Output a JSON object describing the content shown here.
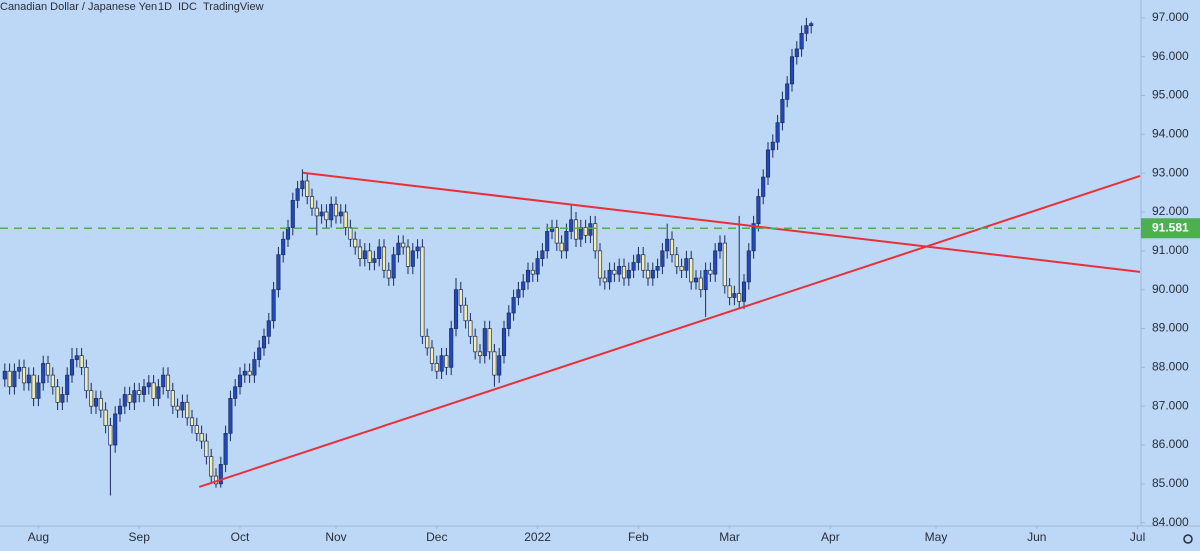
{
  "chart_data": {
    "type": "candlestick",
    "title": "Canadian Dollar / Japanese Yen",
    "interval": "1D",
    "source": "IDC",
    "platform": "TradingView",
    "up_color": "#2149b9",
    "down_color": "#f4efb0",
    "background": "#bcd8f6",
    "xlim": [
      -1,
      236.5
    ],
    "ylim": [
      83.94,
      97.46
    ],
    "xticks": [
      {
        "value": 7,
        "label": "Aug"
      },
      {
        "value": 28,
        "label": "Sep"
      },
      {
        "value": 49,
        "label": "Oct"
      },
      {
        "value": 69,
        "label": "Nov"
      },
      {
        "value": 90,
        "label": "Dec"
      },
      {
        "value": 111,
        "label": "2022"
      },
      {
        "value": 132,
        "label": "Feb"
      },
      {
        "value": 151,
        "label": "Mar"
      },
      {
        "value": 172,
        "label": "Apr"
      },
      {
        "value": 194,
        "label": "May"
      },
      {
        "value": 215,
        "label": "Jun"
      },
      {
        "value": 236,
        "label": "Jul"
      }
    ],
    "yticks": [
      {
        "value": 84,
        "label": "84.000"
      },
      {
        "value": 85,
        "label": "85.000"
      },
      {
        "value": 86,
        "label": "86.000"
      },
      {
        "value": 87,
        "label": "87.000"
      },
      {
        "value": 88,
        "label": "88.000"
      },
      {
        "value": 89,
        "label": "89.000"
      },
      {
        "value": 90,
        "label": "90.000"
      },
      {
        "value": 91,
        "label": "91.000"
      },
      {
        "value": 92,
        "label": "92.000"
      },
      {
        "value": 93,
        "label": "93.000"
      },
      {
        "value": 94,
        "label": "94.000"
      },
      {
        "value": 95,
        "label": "95.000"
      },
      {
        "value": 96,
        "label": "96.000"
      },
      {
        "value": 97,
        "label": "97.000"
      }
    ],
    "open": [
      87.7,
      87.9,
      87.5,
      87.9,
      88.0,
      87.6,
      87.8,
      87.2,
      87.6,
      88.1,
      87.8,
      87.5,
      87.1,
      87.3,
      87.8,
      88.2,
      88.3,
      88.0,
      87.4,
      87.0,
      87.2,
      86.9,
      86.5,
      86.0,
      86.8,
      87.0,
      87.3,
      87.1,
      87.4,
      87.3,
      87.5,
      87.6,
      87.2,
      87.5,
      87.8,
      87.4,
      87.0,
      86.9,
      87.1,
      86.7,
      86.5,
      86.3,
      86.1,
      85.7,
      85.2,
      85.0,
      85.5,
      86.3,
      87.2,
      87.5,
      87.8,
      87.9,
      87.8,
      88.2,
      88.5,
      88.8,
      89.2,
      90.0,
      90.9,
      91.3,
      91.6,
      92.3,
      92.6,
      92.8,
      92.4,
      92.1,
      91.9,
      92.0,
      91.8,
      92.2,
      91.9,
      92.0,
      91.6,
      91.3,
      91.1,
      90.8,
      91.0,
      90.7,
      90.8,
      91.1,
      90.5,
      90.3,
      90.9,
      91.2,
      91.1,
      90.6,
      91.0,
      91.1,
      88.8,
      88.5,
      88.1,
      87.9,
      88.3,
      88.0,
      89.0,
      90.0,
      89.6,
      89.2,
      88.8,
      88.4,
      88.3,
      89.0,
      88.4,
      87.8,
      88.3,
      89.0,
      89.4,
      89.8,
      90.0,
      90.2,
      90.5,
      90.4,
      90.8,
      91.0,
      91.5,
      91.6,
      91.2,
      91.0,
      91.5,
      91.8,
      91.3,
      91.6,
      91.4,
      91.7,
      91.0,
      90.3,
      90.2,
      90.5,
      90.4,
      90.6,
      90.3,
      90.5,
      90.7,
      90.9,
      90.5,
      90.3,
      90.5,
      90.6,
      91.0,
      91.3,
      90.9,
      90.6,
      90.5,
      90.8,
      90.2,
      90.3,
      90.0,
      90.5,
      90.4,
      91.0,
      91.2,
      90.1,
      89.8,
      89.9,
      89.7,
      90.2,
      91.0,
      91.7,
      92.4,
      92.9,
      93.6,
      93.8,
      94.3,
      94.9,
      95.3,
      96.0,
      96.2,
      96.6,
      96.8
    ],
    "high": [
      88.1,
      88.1,
      88.1,
      88.2,
      88.2,
      88.0,
      88.0,
      87.8,
      88.3,
      88.3,
      88.0,
      87.7,
      87.5,
      88.0,
      88.5,
      88.5,
      88.5,
      88.2,
      87.6,
      87.4,
      87.4,
      87.1,
      86.7,
      87.0,
      87.2,
      87.5,
      87.5,
      87.6,
      87.6,
      87.7,
      87.8,
      87.8,
      87.7,
      88.0,
      88.0,
      87.6,
      87.2,
      87.3,
      87.3,
      86.9,
      86.7,
      86.5,
      86.3,
      85.9,
      85.4,
      85.7,
      86.5,
      87.4,
      87.7,
      88.0,
      88.1,
      88.1,
      88.4,
      88.7,
      89.0,
      89.4,
      90.2,
      91.1,
      91.5,
      91.8,
      92.5,
      92.8,
      93.1,
      93.0,
      92.6,
      92.3,
      92.2,
      92.2,
      92.4,
      92.4,
      92.2,
      92.2,
      91.8,
      91.5,
      91.3,
      91.2,
      91.2,
      91.0,
      91.3,
      91.3,
      90.7,
      91.1,
      91.4,
      91.4,
      91.3,
      91.2,
      91.3,
      91.3,
      89.0,
      88.7,
      88.3,
      88.5,
      88.5,
      89.2,
      90.3,
      90.2,
      89.8,
      89.4,
      89.0,
      88.6,
      89.2,
      89.2,
      88.6,
      88.5,
      89.2,
      89.6,
      90.0,
      90.2,
      90.4,
      90.7,
      90.7,
      91.0,
      91.2,
      91.7,
      91.8,
      91.8,
      91.4,
      91.7,
      92.2,
      92.0,
      91.8,
      91.8,
      91.9,
      91.9,
      91.2,
      90.5,
      90.7,
      90.7,
      90.8,
      90.8,
      90.7,
      90.9,
      91.1,
      91.1,
      90.7,
      90.7,
      90.8,
      91.2,
      91.7,
      91.5,
      91.1,
      90.8,
      91.0,
      91.0,
      90.5,
      90.5,
      90.7,
      90.7,
      91.2,
      91.4,
      91.4,
      90.3,
      90.1,
      91.9,
      90.4,
      91.2,
      91.9,
      92.6,
      93.1,
      93.8,
      94.0,
      94.5,
      95.1,
      95.5,
      96.2,
      96.4,
      96.8,
      97.0,
      96.9
    ],
    "low": [
      87.5,
      87.3,
      87.3,
      87.7,
      87.4,
      87.4,
      87.0,
      87.0,
      87.4,
      87.6,
      87.3,
      86.9,
      86.9,
      87.1,
      87.6,
      88.0,
      87.8,
      87.2,
      86.8,
      86.8,
      86.7,
      86.3,
      84.7,
      85.8,
      86.6,
      86.8,
      86.9,
      86.9,
      87.1,
      87.1,
      87.3,
      87.0,
      87.0,
      87.3,
      87.2,
      86.8,
      86.7,
      86.7,
      86.5,
      86.3,
      86.1,
      85.9,
      85.5,
      85.0,
      84.9,
      84.9,
      85.3,
      86.1,
      87.0,
      87.3,
      87.6,
      87.6,
      87.6,
      88.0,
      88.3,
      88.6,
      89.0,
      89.8,
      90.7,
      91.1,
      91.4,
      92.1,
      92.4,
      92.2,
      91.9,
      91.4,
      91.7,
      91.6,
      91.6,
      91.7,
      91.7,
      91.4,
      91.1,
      90.9,
      90.6,
      90.6,
      90.5,
      90.5,
      90.6,
      90.3,
      90.1,
      90.1,
      90.7,
      90.9,
      90.4,
      90.4,
      90.8,
      88.6,
      88.3,
      87.9,
      87.7,
      87.7,
      87.8,
      87.8,
      88.8,
      89.4,
      89.0,
      88.6,
      88.2,
      88.1,
      88.1,
      88.2,
      87.5,
      87.6,
      88.1,
      88.8,
      89.2,
      89.6,
      89.8,
      90.0,
      90.2,
      90.2,
      90.6,
      90.8,
      91.3,
      91.0,
      90.8,
      90.8,
      91.3,
      91.1,
      91.1,
      91.2,
      91.2,
      90.8,
      90.1,
      90.0,
      90.0,
      90.2,
      90.2,
      90.1,
      90.1,
      90.3,
      90.5,
      90.3,
      90.1,
      90.1,
      90.3,
      90.4,
      90.8,
      90.7,
      90.4,
      90.3,
      90.3,
      90.0,
      90.0,
      89.8,
      89.3,
      90.2,
      90.2,
      90.8,
      89.9,
      89.6,
      89.6,
      89.5,
      89.5,
      90.0,
      90.8,
      91.5,
      92.2,
      92.7,
      93.4,
      93.6,
      94.1,
      94.7,
      95.1,
      95.8,
      96.0,
      96.4,
      96.6
    ],
    "close": [
      87.9,
      87.5,
      87.9,
      88.0,
      87.6,
      87.8,
      87.2,
      87.6,
      88.1,
      87.8,
      87.5,
      87.1,
      87.3,
      87.8,
      88.2,
      88.3,
      88.0,
      87.4,
      87.0,
      87.2,
      86.9,
      86.5,
      86.0,
      86.8,
      87.0,
      87.3,
      87.1,
      87.4,
      87.3,
      87.5,
      87.6,
      87.2,
      87.5,
      87.8,
      87.4,
      87.0,
      86.9,
      87.1,
      86.7,
      86.5,
      86.3,
      86.1,
      85.7,
      85.2,
      85.0,
      85.5,
      86.3,
      87.2,
      87.5,
      87.8,
      87.9,
      87.8,
      88.2,
      88.5,
      88.8,
      89.2,
      90.0,
      90.9,
      91.3,
      91.6,
      92.3,
      92.6,
      92.8,
      92.4,
      92.1,
      91.9,
      92.0,
      91.8,
      92.2,
      91.9,
      92.0,
      91.6,
      91.3,
      91.1,
      90.8,
      91.0,
      90.7,
      90.8,
      91.1,
      90.5,
      90.3,
      90.9,
      91.2,
      91.1,
      90.6,
      91.0,
      91.1,
      88.8,
      88.5,
      88.1,
      87.9,
      88.3,
      88.0,
      89.0,
      90.0,
      89.6,
      89.2,
      88.8,
      88.4,
      88.3,
      89.0,
      88.4,
      87.8,
      88.3,
      89.0,
      89.4,
      89.8,
      90.0,
      90.2,
      90.5,
      90.4,
      90.8,
      91.0,
      91.5,
      91.6,
      91.2,
      91.0,
      91.5,
      91.8,
      91.3,
      91.6,
      91.4,
      91.7,
      91.0,
      90.3,
      90.2,
      90.5,
      90.4,
      90.6,
      90.3,
      90.5,
      90.7,
      90.9,
      90.5,
      90.3,
      90.5,
      90.6,
      91.0,
      91.3,
      90.9,
      90.6,
      90.5,
      90.8,
      90.2,
      90.3,
      90.0,
      90.5,
      90.4,
      91.0,
      91.2,
      90.1,
      89.8,
      89.9,
      89.7,
      90.2,
      91.0,
      91.7,
      92.4,
      92.9,
      93.6,
      93.8,
      94.3,
      94.9,
      95.3,
      96.0,
      96.2,
      96.6,
      96.8,
      96.85
    ],
    "price_line": {
      "value": 91.581,
      "color": "#4caf50"
    },
    "trendlines": [
      {
        "x": [
          62.1,
          236.5
        ],
        "y": [
          93.01,
          90.46
        ],
        "color": "#e8303a"
      },
      {
        "x": [
          40.5,
          236.5
        ],
        "y": [
          84.92,
          92.93
        ],
        "color": "#e8303a"
      }
    ]
  }
}
